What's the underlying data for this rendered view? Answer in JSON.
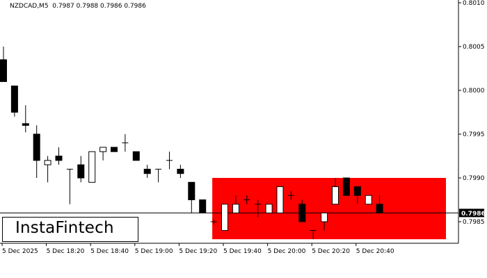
{
  "header": {
    "symbol": "NZDCAD,M5",
    "ohlc": "0.7987 0.7988 0.7986 0.7986"
  },
  "logo": {
    "text": "InstaFintech"
  },
  "colors": {
    "bullish": "#ffffff",
    "bearish": "#000000",
    "zone": "#ff0000",
    "axis": "#000000",
    "price_tag_bg": "#000000",
    "price_tag_text": "#ffffff"
  },
  "chart_data": {
    "type": "candlestick",
    "ylim": [
      0.798,
      0.801
    ],
    "y_ticks": [
      "0.8010",
      "0.8005",
      "0.8000",
      "0.7995",
      "0.7990",
      "0.7985"
    ],
    "x_ticks": [
      {
        "index": 0,
        "label": "5 Dec 2025"
      },
      {
        "index": 4,
        "label": "5 Dec 18:20"
      },
      {
        "index": 8,
        "label": "5 Dec 18:40"
      },
      {
        "index": 12,
        "label": "5 Dec 19:00"
      },
      {
        "index": 16,
        "label": "5 Dec 19:20"
      },
      {
        "index": 20,
        "label": "5 Dec 19:40"
      },
      {
        "index": 24,
        "label": "5 Dec 20:00"
      },
      {
        "index": 28,
        "label": "5 Dec 20:20"
      },
      {
        "index": 32,
        "label": "5 Dec 20:40"
      }
    ],
    "current_price": "0.7986",
    "zone": {
      "x_start_index": 19,
      "x_end_index": 40,
      "y_low": 0.7983,
      "y_high": 0.799
    },
    "candles": [
      {
        "o": 0.80035,
        "h": 0.8005,
        "l": 0.8001,
        "c": 0.8001
      },
      {
        "o": 0.80005,
        "h": 0.80005,
        "l": 0.7997,
        "c": 0.79975
      },
      {
        "o": 0.79962,
        "h": 0.79983,
        "l": 0.79952,
        "c": 0.7996
      },
      {
        "o": 0.7995,
        "h": 0.7996,
        "l": 0.799,
        "c": 0.7992
      },
      {
        "o": 0.79915,
        "h": 0.79925,
        "l": 0.79895,
        "c": 0.7992
      },
      {
        "o": 0.79925,
        "h": 0.79935,
        "l": 0.79915,
        "c": 0.7992
      },
      {
        "o": 0.7991,
        "h": 0.7991,
        "l": 0.7987,
        "c": 0.7991
      },
      {
        "o": 0.79915,
        "h": 0.79925,
        "l": 0.79895,
        "c": 0.799
      },
      {
        "o": 0.79895,
        "h": 0.7993,
        "l": 0.79895,
        "c": 0.7993
      },
      {
        "o": 0.7993,
        "h": 0.79935,
        "l": 0.7992,
        "c": 0.79935
      },
      {
        "o": 0.79935,
        "h": 0.79935,
        "l": 0.7993,
        "c": 0.7993
      },
      {
        "o": 0.7994,
        "h": 0.7995,
        "l": 0.7993,
        "c": 0.7994
      },
      {
        "o": 0.7993,
        "h": 0.7993,
        "l": 0.7992,
        "c": 0.7992
      },
      {
        "o": 0.7991,
        "h": 0.79915,
        "l": 0.799,
        "c": 0.79905
      },
      {
        "o": 0.7991,
        "h": 0.7991,
        "l": 0.79895,
        "c": 0.7991
      },
      {
        "o": 0.7992,
        "h": 0.7993,
        "l": 0.7991,
        "c": 0.7992
      },
      {
        "o": 0.7991,
        "h": 0.79915,
        "l": 0.799,
        "c": 0.79905
      },
      {
        "o": 0.79895,
        "h": 0.79895,
        "l": 0.7986,
        "c": 0.79875
      },
      {
        "o": 0.79875,
        "h": 0.79875,
        "l": 0.7986,
        "c": 0.7986
      },
      {
        "o": 0.7985,
        "h": 0.79853,
        "l": 0.79847,
        "c": 0.7985
      },
      {
        "o": 0.7984,
        "h": 0.7987,
        "l": 0.7984,
        "c": 0.7987
      },
      {
        "o": 0.7986,
        "h": 0.7988,
        "l": 0.7986,
        "c": 0.7987
      },
      {
        "o": 0.79875,
        "h": 0.7988,
        "l": 0.7987,
        "c": 0.79875
      },
      {
        "o": 0.7987,
        "h": 0.79875,
        "l": 0.79855,
        "c": 0.7987
      },
      {
        "o": 0.7986,
        "h": 0.7987,
        "l": 0.7986,
        "c": 0.7987
      },
      {
        "o": 0.7986,
        "h": 0.7989,
        "l": 0.7986,
        "c": 0.7989
      },
      {
        "o": 0.7988,
        "h": 0.79885,
        "l": 0.79875,
        "c": 0.7988
      },
      {
        "o": 0.7987,
        "h": 0.79875,
        "l": 0.7985,
        "c": 0.7985
      },
      {
        "o": 0.7984,
        "h": 0.7984,
        "l": 0.7983,
        "c": 0.7984
      },
      {
        "o": 0.7985,
        "h": 0.7986,
        "l": 0.7984,
        "c": 0.7986
      },
      {
        "o": 0.7987,
        "h": 0.799,
        "l": 0.7987,
        "c": 0.7989
      },
      {
        "o": 0.799,
        "h": 0.799,
        "l": 0.7988,
        "c": 0.7988
      },
      {
        "o": 0.7989,
        "h": 0.7989,
        "l": 0.7987,
        "c": 0.7988
      },
      {
        "o": 0.7987,
        "h": 0.7988,
        "l": 0.7987,
        "c": 0.7988
      },
      {
        "o": 0.7987,
        "h": 0.7988,
        "l": 0.7986,
        "c": 0.7986
      }
    ]
  }
}
